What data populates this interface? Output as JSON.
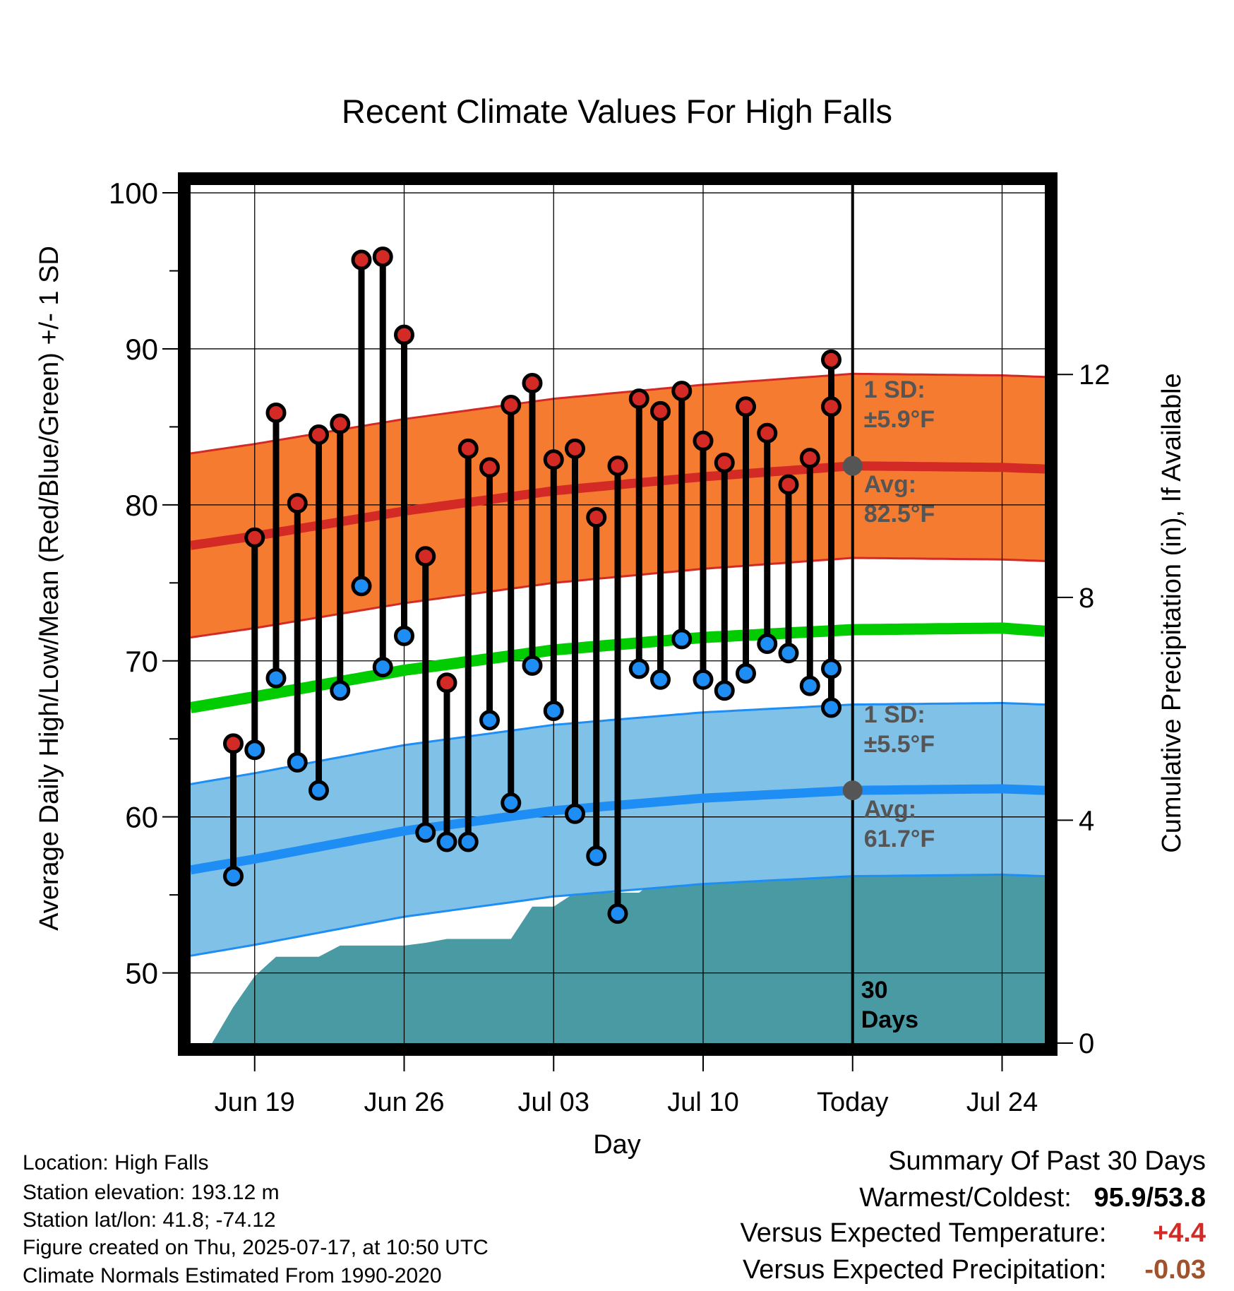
{
  "chart_data": {
    "type": "line",
    "title": "Recent Climate Values For High Falls",
    "xlabel": "Day",
    "ylabel": "Average Daily High/Low/Mean (Red/Blue/Green) +/- 1 SD",
    "y2label": "Cumulative Precipitation (in), If Available",
    "ylim": [
      45.5,
      100.5
    ],
    "y2lim": [
      0,
      15.4
    ],
    "xlim": [
      "2025-06-16",
      "2025-07-26"
    ],
    "x_tick_labels": [
      "Jun 19",
      "Jun 26",
      "Jul 03",
      "Jul 10",
      "Today",
      "Jul 24"
    ],
    "x_tick_dates": [
      "2025-06-19",
      "2025-06-26",
      "2025-07-03",
      "2025-07-10",
      "2025-07-17",
      "2025-07-24"
    ],
    "y_ticks": [
      50,
      60,
      70,
      80,
      90,
      100
    ],
    "y2_ticks": [
      0,
      4,
      8,
      12
    ],
    "grid": true,
    "today": "2025-07-17",
    "period_label": [
      "30",
      "Days"
    ],
    "daily": {
      "dates": [
        "2025-06-18",
        "2025-06-19",
        "2025-06-20",
        "2025-06-21",
        "2025-06-22",
        "2025-06-23",
        "2025-06-24",
        "2025-06-25",
        "2025-06-26",
        "2025-06-27",
        "2025-06-28",
        "2025-06-29",
        "2025-06-30",
        "2025-07-01",
        "2025-07-02",
        "2025-07-03",
        "2025-07-04",
        "2025-07-05",
        "2025-07-06",
        "2025-07-07",
        "2025-07-08",
        "2025-07-09",
        "2025-07-10",
        "2025-07-11",
        "2025-07-12",
        "2025-07-13",
        "2025-07-14",
        "2025-07-15",
        "2025-07-16"
      ],
      "highs": [
        64.7,
        77.9,
        85.9,
        80.1,
        84.5,
        85.2,
        95.7,
        95.9,
        90.9,
        76.7,
        68.6,
        83.6,
        82.4,
        86.4,
        87.8,
        82.9,
        83.6,
        79.2,
        82.5,
        86.8,
        86.0,
        87.3,
        84.1,
        82.7,
        86.3,
        84.6,
        81.3,
        83.0,
        86.3
      ],
      "lows": [
        56.2,
        64.3,
        68.9,
        63.5,
        61.7,
        68.1,
        74.8,
        69.6,
        71.6,
        59.0,
        58.4,
        58.4,
        66.2,
        60.9,
        69.7,
        66.8,
        60.2,
        57.5,
        53.8,
        69.5,
        68.8,
        71.4,
        68.8,
        68.1,
        69.2,
        71.1,
        70.5,
        68.4,
        67.0
      ]
    },
    "extra_point": {
      "date": "2025-07-17",
      "high": 89.3,
      "low": 69.5
    },
    "normals": {
      "dates": [
        "2025-06-16",
        "2025-06-19",
        "2025-06-26",
        "2025-07-03",
        "2025-07-10",
        "2025-07-17",
        "2025-07-24",
        "2025-07-26"
      ],
      "avg_high": [
        77.4,
        78.0,
        79.6,
        80.9,
        81.8,
        82.5,
        82.4,
        82.3
      ],
      "avg_low": [
        56.6,
        57.3,
        59.1,
        60.4,
        61.2,
        61.7,
        61.8,
        61.7
      ],
      "avg_mean": [
        67.0,
        67.7,
        69.4,
        70.7,
        71.5,
        72.0,
        72.1,
        71.9
      ],
      "high_sd": 5.9,
      "low_sd": 5.5
    },
    "precip_cumulative": {
      "dates": [
        "2025-06-17",
        "2025-06-18",
        "2025-06-19",
        "2025-06-20",
        "2025-06-21",
        "2025-06-22",
        "2025-06-23",
        "2025-06-24",
        "2025-06-25",
        "2025-06-26",
        "2025-06-27",
        "2025-06-28",
        "2025-06-29",
        "2025-06-30",
        "2025-07-01",
        "2025-07-02",
        "2025-07-03",
        "2025-07-04",
        "2025-07-05",
        "2025-07-06",
        "2025-07-07",
        "2025-07-08",
        "2025-07-09",
        "2025-07-10",
        "2025-07-11",
        "2025-07-12",
        "2025-07-13",
        "2025-07-14",
        "2025-07-15",
        "2025-07-16",
        "2025-07-17",
        "2025-07-26"
      ],
      "values": [
        0.0,
        0.65,
        1.2,
        1.55,
        1.55,
        1.55,
        1.75,
        1.75,
        1.75,
        1.75,
        1.8,
        1.87,
        1.87,
        1.87,
        1.87,
        2.45,
        2.45,
        2.7,
        2.7,
        2.7,
        2.7,
        3.0,
        3.0,
        3.2,
        3.25,
        3.25,
        3.25,
        3.25,
        4.05,
        4.05,
        4.05,
        4.05
      ]
    },
    "annotations": {
      "high_sd": [
        "1 SD:",
        "±5.9°F"
      ],
      "high_avg": [
        "Avg:",
        "82.5°F"
      ],
      "low_sd": [
        "1 SD:",
        "±5.5°F"
      ],
      "low_avg": [
        "Avg:",
        "61.7°F"
      ]
    },
    "colors": {
      "high_band": "#f47b30",
      "high_line": "#d42a26",
      "low_band": "#80c1e8",
      "low_line": "#1e8ef5",
      "mean_line": "#00cc00",
      "precip": "#4a9aa4",
      "high_marker": "#d42a26",
      "low_marker": "#1e8ef5",
      "annotation": "#555555",
      "temp_anomaly": "#d42a26",
      "precip_anomaly": "#a0522d"
    }
  },
  "info": {
    "location": "Location: High Falls",
    "elevation": "Station elevation: 193.12 m",
    "latlon": "Station lat/lon: 41.8; -74.12",
    "created": "Figure created on Thu, 2025-07-17, at 10:50 UTC",
    "normals": "Climate Normals Estimated From 1990-2020"
  },
  "summary": {
    "title": "Summary Of Past 30 Days",
    "warmest_label": "Warmest/Coldest:",
    "warmest_value": "95.9/53.8",
    "temp_label": "Versus Expected Temperature:",
    "temp_value": "+4.4",
    "precip_label": "Versus Expected Precipitation:",
    "precip_value": "-0.03"
  }
}
